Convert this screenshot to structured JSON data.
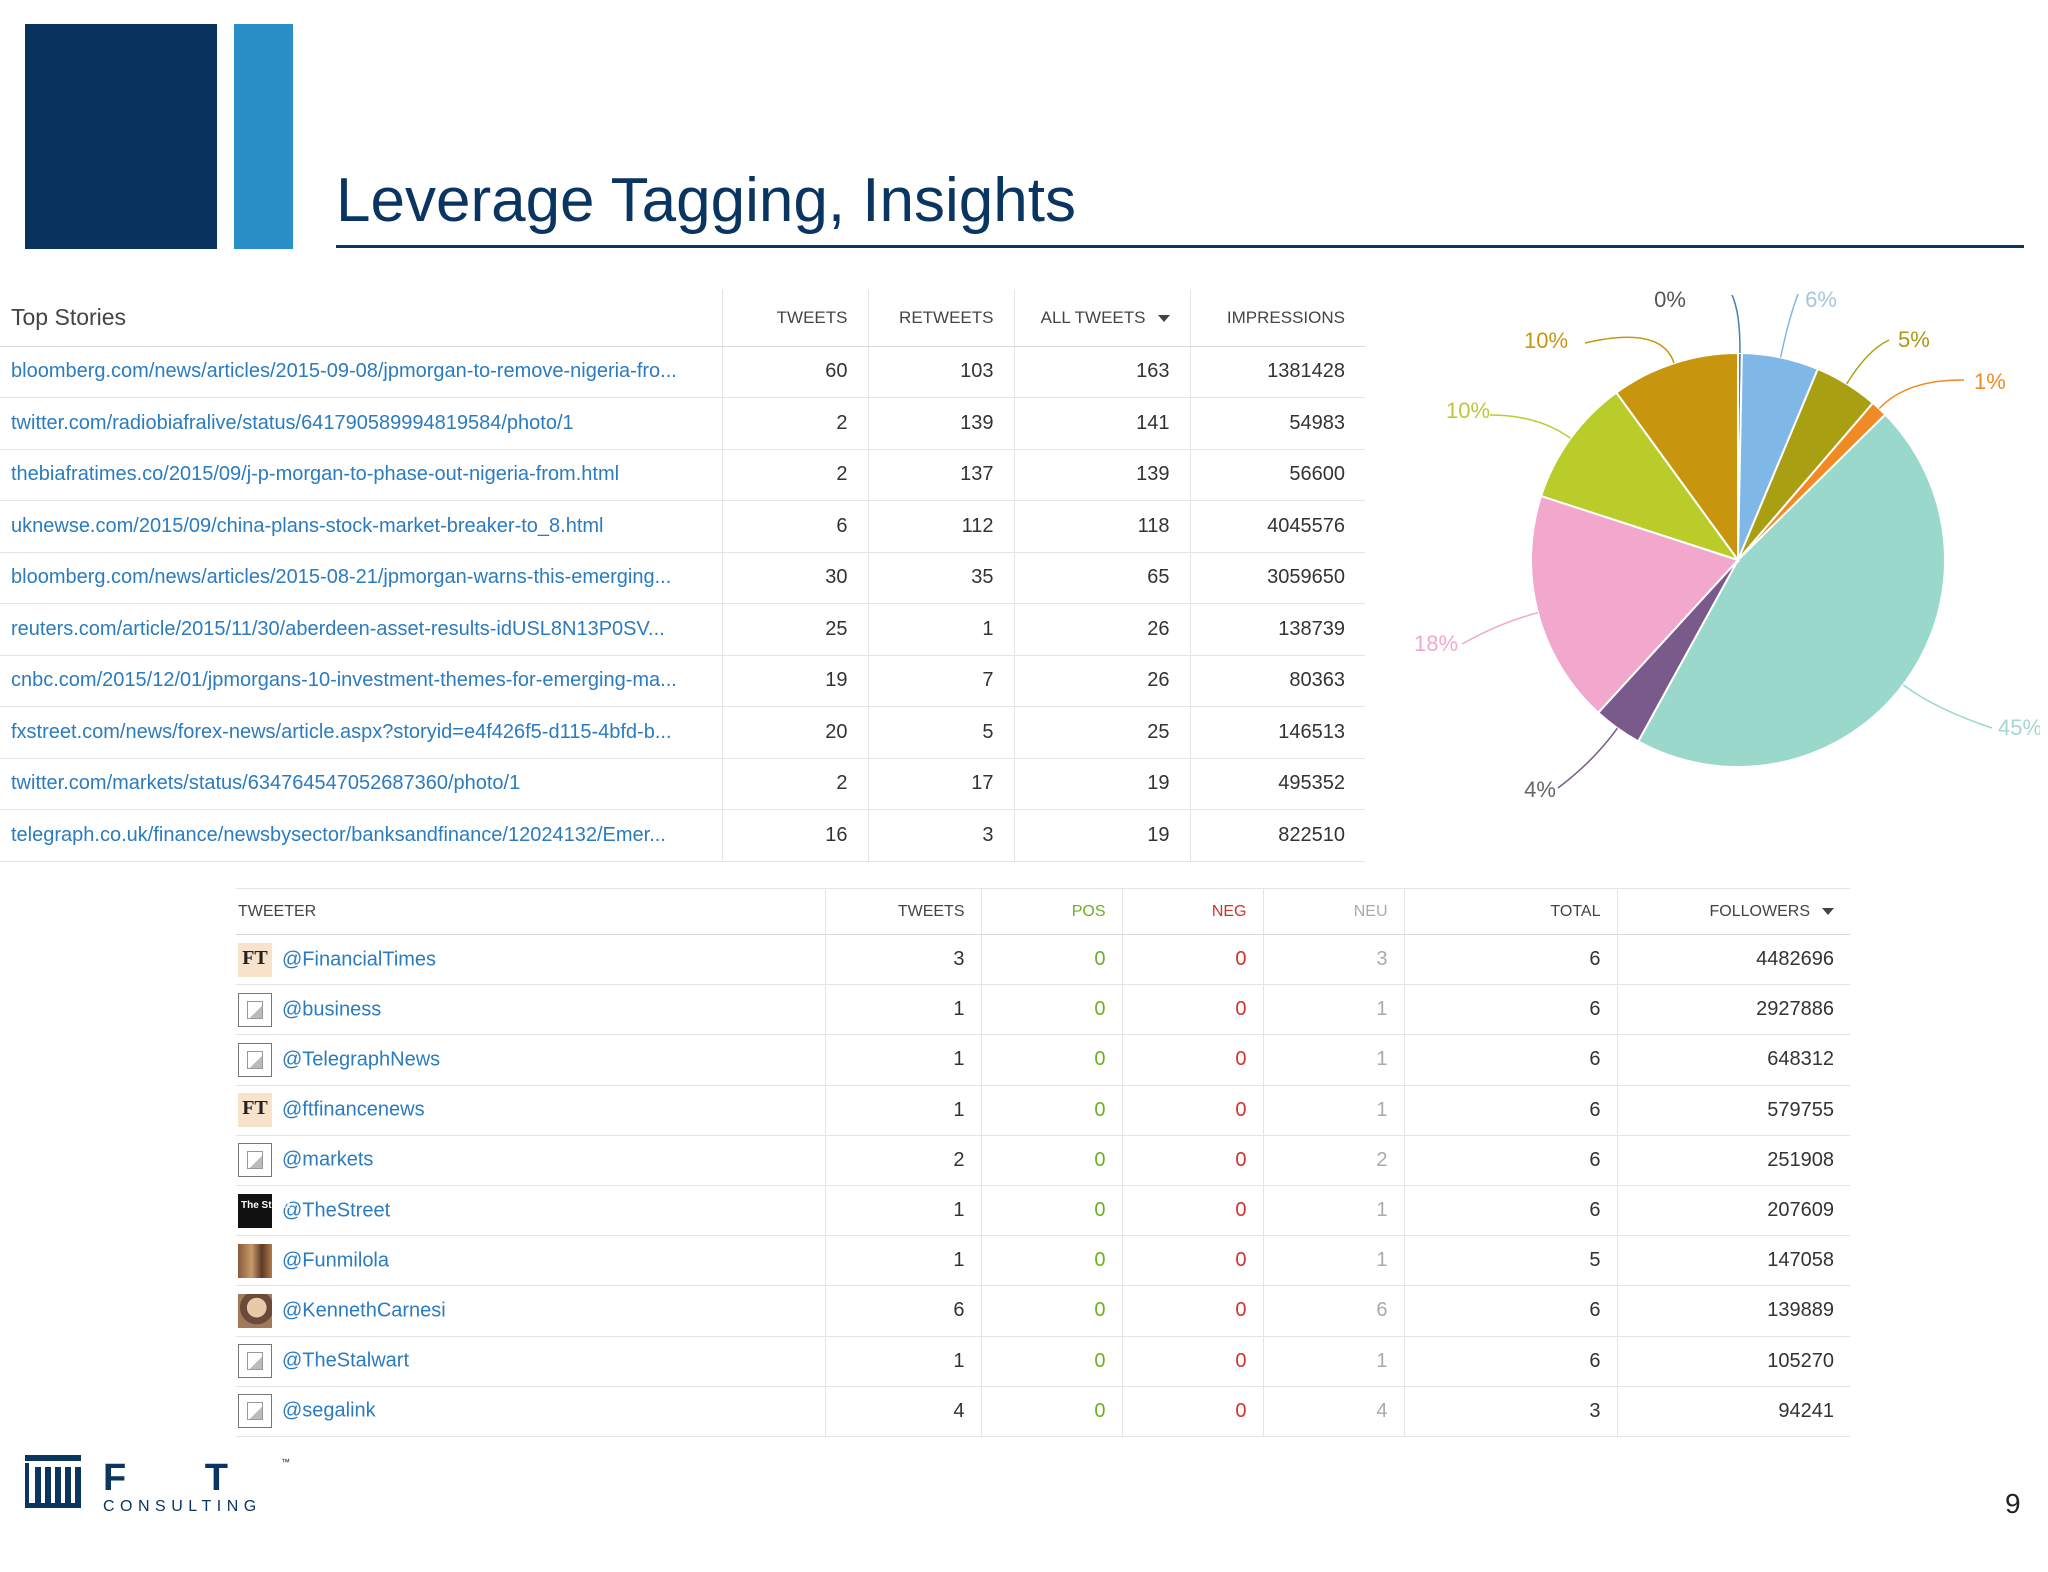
{
  "slide": {
    "title": "Leverage Tagging, Insights",
    "page_number": "9"
  },
  "top_stories": {
    "headers": [
      "Top Stories",
      "TWEETS",
      "RETWEETS",
      "ALL TWEETS",
      "IMPRESSIONS"
    ],
    "rows": [
      {
        "url": "bloomberg.com/news/articles/2015-09-08/jpmorgan-to-remove-nigeria-fro...",
        "tweets": "60",
        "retweets": "103",
        "all_tweets": "163",
        "impressions": "1381428"
      },
      {
        "url": "twitter.com/radiobiafralive/status/641790589994819584/photo/1",
        "tweets": "2",
        "retweets": "139",
        "all_tweets": "141",
        "impressions": "54983"
      },
      {
        "url": "thebiafratimes.co/2015/09/j-p-morgan-to-phase-out-nigeria-from.html",
        "tweets": "2",
        "retweets": "137",
        "all_tweets": "139",
        "impressions": "56600"
      },
      {
        "url": "uknewse.com/2015/09/china-plans-stock-market-breaker-to_8.html",
        "tweets": "6",
        "retweets": "112",
        "all_tweets": "118",
        "impressions": "4045576"
      },
      {
        "url": "bloomberg.com/news/articles/2015-08-21/jpmorgan-warns-this-emerging...",
        "tweets": "30",
        "retweets": "35",
        "all_tweets": "65",
        "impressions": "3059650"
      },
      {
        "url": "reuters.com/article/2015/11/30/aberdeen-asset-results-idUSL8N13P0SV...",
        "tweets": "25",
        "retweets": "1",
        "all_tweets": "26",
        "impressions": "138739"
      },
      {
        "url": "cnbc.com/2015/12/01/jpmorgans-10-investment-themes-for-emerging-ma...",
        "tweets": "19",
        "retweets": "7",
        "all_tweets": "26",
        "impressions": "80363"
      },
      {
        "url": "fxstreet.com/news/forex-news/article.aspx?storyid=e4f426f5-d115-4bfd-b...",
        "tweets": "20",
        "retweets": "5",
        "all_tweets": "25",
        "impressions": "146513"
      },
      {
        "url": "twitter.com/markets/status/634764547052687360/photo/1",
        "tweets": "2",
        "retweets": "17",
        "all_tweets": "19",
        "impressions": "495352"
      },
      {
        "url": "telegraph.co.uk/finance/newsbysector/banksandfinance/12024132/Emer...",
        "tweets": "16",
        "retweets": "3",
        "all_tweets": "19",
        "impressions": "822510"
      }
    ]
  },
  "tweeters": {
    "headers": [
      "TWEETER",
      "TWEETS",
      "POS",
      "NEG",
      "NEU",
      "TOTAL",
      "FOLLOWERS"
    ],
    "rows": [
      {
        "avatar": "ft-logo",
        "avatar_text": "FT",
        "handle": "@FinancialTimes",
        "tweets": "3",
        "pos": "0",
        "neg": "0",
        "neu": "3",
        "total": "6",
        "followers": "4482696"
      },
      {
        "avatar": "broken-image-icon",
        "avatar_text": "",
        "handle": "@business",
        "tweets": "1",
        "pos": "0",
        "neg": "0",
        "neu": "1",
        "total": "6",
        "followers": "2927886"
      },
      {
        "avatar": "broken-image-icon",
        "avatar_text": "",
        "handle": "@TelegraphNews",
        "tweets": "1",
        "pos": "0",
        "neg": "0",
        "neu": "1",
        "total": "6",
        "followers": "648312"
      },
      {
        "avatar": "ft-logo",
        "avatar_text": "FT",
        "handle": "@ftfinancenews",
        "tweets": "1",
        "pos": "0",
        "neg": "0",
        "neu": "1",
        "total": "6",
        "followers": "579755"
      },
      {
        "avatar": "broken-image-icon",
        "avatar_text": "",
        "handle": "@markets",
        "tweets": "2",
        "pos": "0",
        "neg": "0",
        "neu": "2",
        "total": "6",
        "followers": "251908"
      },
      {
        "avatar": "thestreet-logo",
        "avatar_text": "The Street",
        "handle": "@TheStreet",
        "tweets": "1",
        "pos": "0",
        "neg": "0",
        "neu": "1",
        "total": "6",
        "followers": "207609"
      },
      {
        "avatar": "photo",
        "avatar_text": "",
        "handle": "@Funmilola",
        "tweets": "1",
        "pos": "0",
        "neg": "0",
        "neu": "1",
        "total": "5",
        "followers": "147058"
      },
      {
        "avatar": "photo-face",
        "avatar_text": "",
        "handle": "@KennethCarnesi",
        "tweets": "6",
        "pos": "0",
        "neg": "0",
        "neu": "6",
        "total": "6",
        "followers": "139889"
      },
      {
        "avatar": "broken-image-icon",
        "avatar_text": "",
        "handle": "@TheStalwart",
        "tweets": "1",
        "pos": "0",
        "neg": "0",
        "neu": "1",
        "total": "6",
        "followers": "105270"
      },
      {
        "avatar": "broken-image-icon",
        "avatar_text": "",
        "handle": "@segalink",
        "tweets": "4",
        "pos": "0",
        "neg": "0",
        "neu": "4",
        "total": "3",
        "followers": "94241"
      }
    ]
  },
  "chart_data": {
    "type": "pie",
    "title": "",
    "slices": [
      {
        "label": "0%",
        "value": 0.3,
        "color": "#4a7fb0"
      },
      {
        "label": "6%",
        "value": 6,
        "color": "#7fb8e6"
      },
      {
        "label": "5%",
        "value": 5,
        "color": "#a8a012"
      },
      {
        "label": "1%",
        "value": 1.3,
        "color": "#f08a24"
      },
      {
        "label": "45%",
        "value": 45.4,
        "color": "#9ad8cb"
      },
      {
        "label": "4%",
        "value": 3.8,
        "color": "#7a5a8a"
      },
      {
        "label": "18%",
        "value": 18.2,
        "color": "#f2a8cc"
      },
      {
        "label": "10%",
        "value": 10,
        "color": "#b9cc2a"
      },
      {
        "label": "10%",
        "value": 10,
        "color": "#c8960e"
      }
    ]
  },
  "footer": {
    "logo_text": "F T I",
    "logo_subtext": "CONSULTING",
    "logo_tm": "™"
  }
}
